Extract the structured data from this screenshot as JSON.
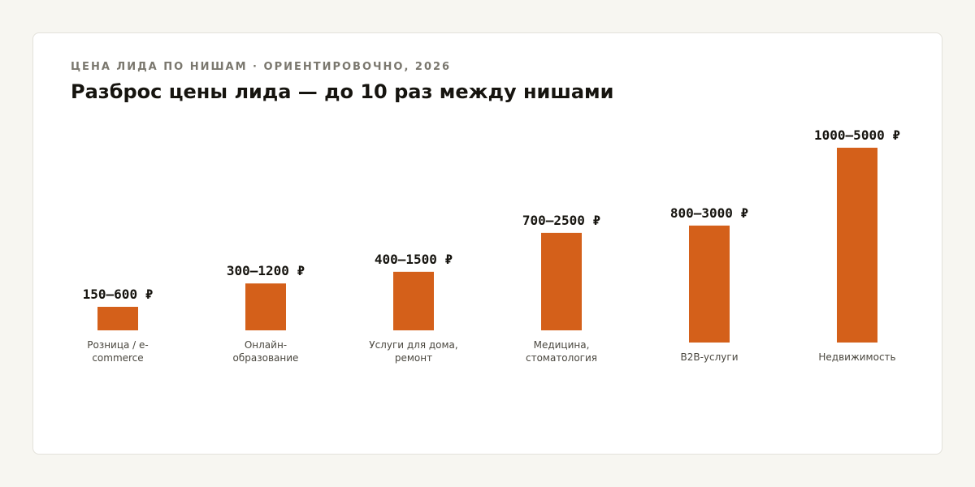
{
  "kicker": "ЦЕНА ЛИДА ПО НИШАМ · ОРИЕНТИРОВОЧНО, 2026",
  "title": "Разброс цены лида — до 10 раз между нишами",
  "colors": {
    "bar": "#d4601a"
  },
  "chart_data": {
    "type": "bar",
    "title": "Разброс цены лида — до 10 раз между нишами",
    "subtitle": "ЦЕНА ЛИДА ПО НИШАМ · ОРИЕНТИРОВОЧНО, 2026",
    "unit": "₽",
    "categories": [
      [
        "Розница / e-",
        "commerce"
      ],
      [
        "Онлайн-",
        "образование"
      ],
      [
        "Услуги для дома,",
        "ремонт"
      ],
      [
        "Медицина,",
        "стоматология"
      ],
      [
        "B2B-услуги"
      ],
      [
        "Недвижимость"
      ]
    ],
    "labels": [
      "150–600 ₽",
      "300–1200 ₽",
      "400–1500 ₽",
      "700–2500 ₽",
      "800–3000 ₽",
      "1000–5000 ₽"
    ],
    "low": [
      150,
      300,
      400,
      700,
      800,
      1000
    ],
    "high": [
      600,
      1200,
      1500,
      2500,
      3000,
      5000
    ],
    "values": [
      600,
      1200,
      1500,
      2500,
      3000,
      5000
    ],
    "xlabel": "",
    "ylabel": "",
    "grid": false,
    "legend": "none"
  }
}
